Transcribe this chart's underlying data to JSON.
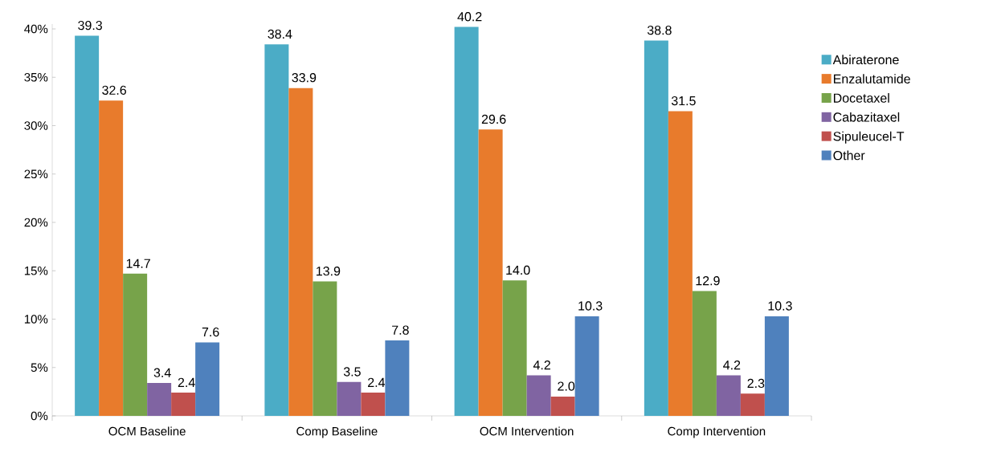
{
  "chart_data": {
    "type": "bar",
    "categories": [
      "OCM Baseline",
      "Comp Baseline",
      "OCM Intervention",
      "Comp Intervention"
    ],
    "series": [
      {
        "name": "Abiraterone",
        "color": "#4bacc6",
        "values": [
          39.3,
          38.4,
          40.2,
          38.8
        ],
        "value_labels": [
          "39.3",
          "38.4",
          "40.2",
          "38.8"
        ]
      },
      {
        "name": "Enzalutamide",
        "color": "#e87b2c",
        "values": [
          32.6,
          33.9,
          29.6,
          31.5
        ],
        "value_labels": [
          "32.6",
          "33.9",
          "29.6",
          "31.5"
        ]
      },
      {
        "name": "Docetaxel",
        "color": "#77a34a",
        "values": [
          14.7,
          13.9,
          14.0,
          12.9
        ],
        "value_labels": [
          "14.7",
          "13.9",
          "14.0",
          "12.9"
        ]
      },
      {
        "name": "Cabazitaxel",
        "color": "#8064a2",
        "values": [
          3.4,
          3.5,
          4.2,
          4.2
        ],
        "value_labels": [
          "3.4",
          "3.5",
          "4.2",
          "4.2"
        ]
      },
      {
        "name": "Sipuleucel-T",
        "color": "#c0504d",
        "values": [
          2.4,
          2.4,
          2.0,
          2.3
        ],
        "value_labels": [
          "2.4",
          "2.4",
          "2.0",
          "2.3"
        ]
      },
      {
        "name": "Other",
        "color": "#4f81bd",
        "values": [
          7.6,
          7.8,
          10.3,
          10.3
        ],
        "value_labels": [
          "7.6",
          "7.8",
          "10.3",
          "10.3"
        ]
      }
    ],
    "ylim": [
      0,
      40.5
    ],
    "yticks": [
      {
        "value": 0,
        "label": "0%"
      },
      {
        "value": 5,
        "label": "5%"
      },
      {
        "value": 10,
        "label": "10%"
      },
      {
        "value": 15,
        "label": "15%"
      },
      {
        "value": 20,
        "label": "20%"
      },
      {
        "value": 25,
        "label": "25%"
      },
      {
        "value": 30,
        "label": "30%"
      },
      {
        "value": 35,
        "label": "35%"
      },
      {
        "value": 40,
        "label": "40%"
      }
    ],
    "grid": false,
    "legend": "right"
  }
}
